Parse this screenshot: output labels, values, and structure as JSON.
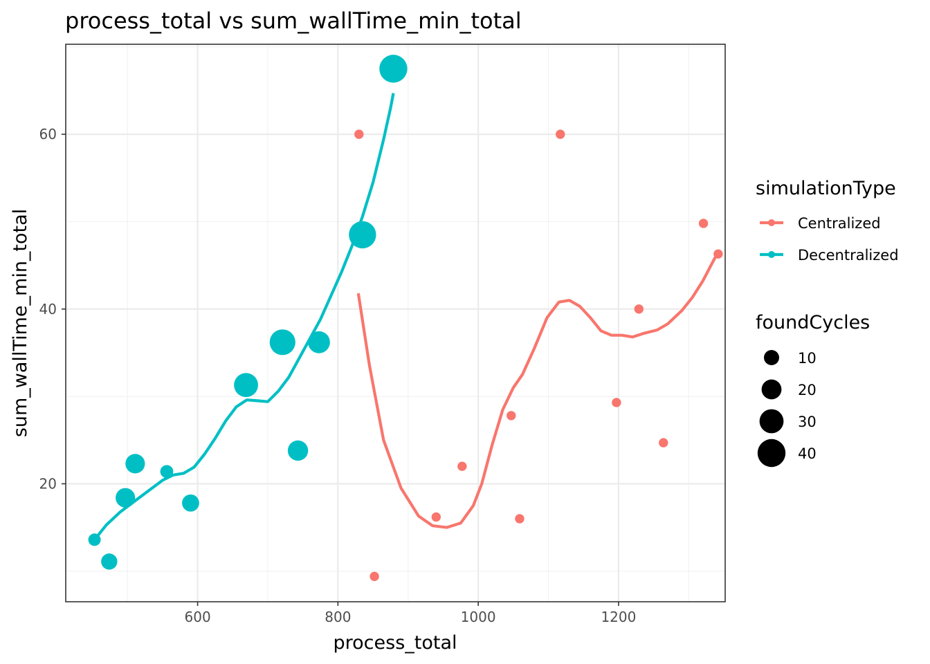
{
  "chart_data": {
    "type": "scatter",
    "title": "process_total  vs  sum_wallTime_min_total",
    "xlabel": "process_total",
    "ylabel": "sum_wallTime_min_total",
    "xlim": [
      412,
      1352
    ],
    "ylim": [
      6.5,
      70.3
    ],
    "x_ticks": [
      600,
      800,
      1000,
      1200
    ],
    "y_ticks": [
      20,
      40,
      60
    ],
    "grid": true,
    "legend_position": "right",
    "colors": {
      "Centralized": "#F8766D",
      "Decentralized": "#00BFC4"
    },
    "color_legend": {
      "title": "simulationType",
      "entries": [
        "Centralized",
        "Decentralized"
      ]
    },
    "size_legend": {
      "title": "foundCycles",
      "entries": [
        {
          "label": "10",
          "value": 10
        },
        {
          "label": "20",
          "value": 20
        },
        {
          "label": "30",
          "value": 30
        },
        {
          "label": "40",
          "value": 40
        }
      ]
    },
    "series": [
      {
        "name": "Centralized",
        "points": [
          {
            "x": 830,
            "y": 60.0,
            "size": 1
          },
          {
            "x": 852,
            "y": 9.4,
            "size": 1
          },
          {
            "x": 940,
            "y": 16.2,
            "size": 1
          },
          {
            "x": 977,
            "y": 22.0,
            "size": 1
          },
          {
            "x": 1047,
            "y": 27.8,
            "size": 1
          },
          {
            "x": 1059,
            "y": 16.0,
            "size": 1
          },
          {
            "x": 1117,
            "y": 60.0,
            "size": 1
          },
          {
            "x": 1197,
            "y": 29.3,
            "size": 1
          },
          {
            "x": 1229,
            "y": 40.0,
            "size": 1
          },
          {
            "x": 1264,
            "y": 24.7,
            "size": 1
          },
          {
            "x": 1321,
            "y": 49.8,
            "size": 1
          },
          {
            "x": 1342,
            "y": 46.3,
            "size": 1
          }
        ],
        "smooth": [
          [
            829,
            41.8
          ],
          [
            845,
            33.5
          ],
          [
            865,
            25.0
          ],
          [
            890,
            19.5
          ],
          [
            915,
            16.3
          ],
          [
            935,
            15.2
          ],
          [
            955,
            15.0
          ],
          [
            975,
            15.5
          ],
          [
            993,
            17.5
          ],
          [
            1005,
            20.0
          ],
          [
            1020,
            24.5
          ],
          [
            1035,
            28.5
          ],
          [
            1050,
            31.0
          ],
          [
            1063,
            32.5
          ],
          [
            1080,
            35.5
          ],
          [
            1098,
            39.0
          ],
          [
            1115,
            40.8
          ],
          [
            1130,
            41.0
          ],
          [
            1145,
            40.3
          ],
          [
            1160,
            39.0
          ],
          [
            1175,
            37.5
          ],
          [
            1190,
            37.0
          ],
          [
            1205,
            37.0
          ],
          [
            1220,
            36.8
          ],
          [
            1235,
            37.2
          ],
          [
            1255,
            37.6
          ],
          [
            1270,
            38.3
          ],
          [
            1290,
            39.8
          ],
          [
            1305,
            41.3
          ],
          [
            1320,
            43.2
          ],
          [
            1335,
            45.5
          ],
          [
            1342,
            46.5
          ]
        ]
      },
      {
        "name": "Decentralized",
        "points": [
          {
            "x": 453,
            "y": 13.6,
            "size": 5
          },
          {
            "x": 474,
            "y": 11.1,
            "size": 12
          },
          {
            "x": 497,
            "y": 18.4,
            "size": 19
          },
          {
            "x": 511,
            "y": 22.3,
            "size": 19
          },
          {
            "x": 556,
            "y": 21.4,
            "size": 6
          },
          {
            "x": 590,
            "y": 17.8,
            "size": 14
          },
          {
            "x": 669,
            "y": 31.3,
            "size": 30
          },
          {
            "x": 721,
            "y": 36.2,
            "size": 34
          },
          {
            "x": 743,
            "y": 23.8,
            "size": 21
          },
          {
            "x": 773,
            "y": 36.2,
            "size": 25
          },
          {
            "x": 835,
            "y": 48.5,
            "size": 38
          },
          {
            "x": 879,
            "y": 67.5,
            "size": 40
          }
        ],
        "smooth": [
          [
            453,
            13.6
          ],
          [
            470,
            15.3
          ],
          [
            490,
            16.8
          ],
          [
            510,
            18.0
          ],
          [
            530,
            19.2
          ],
          [
            550,
            20.4
          ],
          [
            565,
            21.0
          ],
          [
            580,
            21.2
          ],
          [
            595,
            21.9
          ],
          [
            610,
            23.4
          ],
          [
            625,
            25.2
          ],
          [
            640,
            27.2
          ],
          [
            655,
            28.8
          ],
          [
            670,
            29.6
          ],
          [
            685,
            29.5
          ],
          [
            700,
            29.4
          ],
          [
            715,
            30.6
          ],
          [
            730,
            32.2
          ],
          [
            745,
            34.4
          ],
          [
            760,
            36.6
          ],
          [
            775,
            38.8
          ],
          [
            790,
            41.5
          ],
          [
            805,
            44.2
          ],
          [
            820,
            47.2
          ],
          [
            835,
            50.6
          ],
          [
            850,
            54.5
          ],
          [
            865,
            59.4
          ],
          [
            875,
            63.0
          ],
          [
            879,
            64.7
          ]
        ]
      }
    ]
  }
}
